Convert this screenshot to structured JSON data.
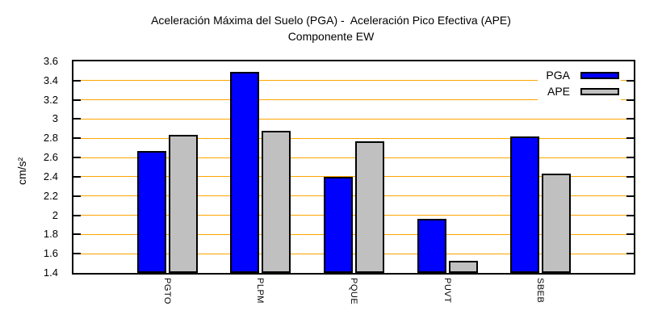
{
  "chart_data": {
    "type": "bar",
    "title": "Aceleración Máxima del Suelo (PGA) -  Aceleración Pico Efectiva (APE)",
    "subtitle": "Componente EW",
    "ylabel": "cm/s²",
    "xlabel": "",
    "categories": [
      "PGTO",
      "PLPM",
      "PQUE",
      "PUVT",
      "SBEB"
    ],
    "series": [
      {
        "name": "PGA",
        "color": "#0000ff",
        "values": [
          2.67,
          3.49,
          2.4,
          1.96,
          2.82
        ]
      },
      {
        "name": "APE",
        "color": "#c0c0c0",
        "values": [
          2.84,
          2.88,
          2.77,
          1.53,
          2.43
        ]
      }
    ],
    "ylim": [
      1.4,
      3.6
    ],
    "yticks": [
      "1.4",
      "1.6",
      "1.8",
      "2",
      "2.2",
      "2.4",
      "2.6",
      "2.8",
      "3",
      "3.2",
      "3.4",
      "3.6"
    ],
    "grid": "horizontal",
    "grid_color": "#ffa500",
    "bar_border_color": "#000000",
    "axis_color": "#000000",
    "legend_position": "top-right",
    "legend_entries": [
      "PGA",
      "APE"
    ]
  }
}
